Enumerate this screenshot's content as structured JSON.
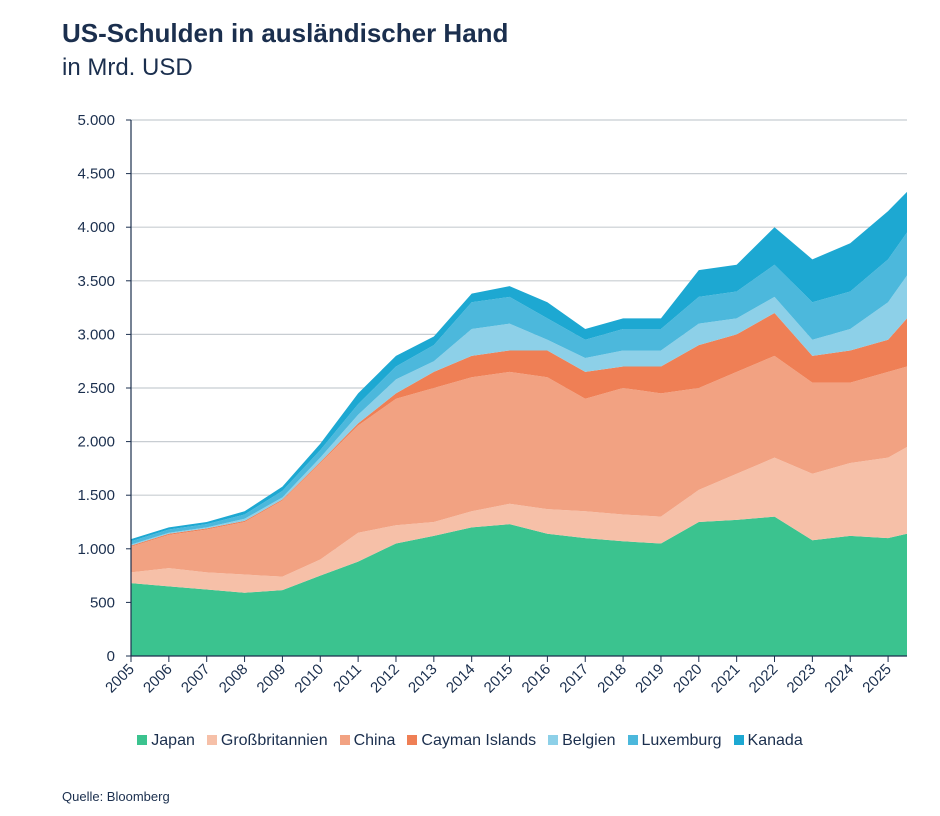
{
  "title": "US-Schulden in ausländischer Hand",
  "subtitle": "in Mrd. USD",
  "source": "Quelle: Bloomberg",
  "chart_data": {
    "type": "area",
    "stacked": true,
    "title": "US-Schulden in ausländischer Hand",
    "ylabel": "in Mrd. USD",
    "ylim": [
      0,
      5000
    ],
    "yticks": [
      0,
      500,
      1000,
      1500,
      2000,
      2500,
      3000,
      3500,
      4000,
      4500,
      5000
    ],
    "ytick_labels": [
      "0",
      "500",
      "1.000",
      "1.500",
      "2.000",
      "2.500",
      "3.000",
      "3.500",
      "4.000",
      "4.500",
      "5.000"
    ],
    "xlim": [
      2005,
      2025.5
    ],
    "xtick_labels": [
      "2005",
      "2006",
      "2007",
      "2008",
      "2009",
      "2010",
      "2011",
      "2012",
      "2013",
      "2014",
      "2015",
      "2016",
      "2017",
      "2018",
      "2019",
      "2020",
      "2021",
      "2022",
      "2023",
      "2024",
      "2025"
    ],
    "grid": "horizontal",
    "legend": "bottom",
    "x": [
      2005,
      2006,
      2007,
      2008,
      2009,
      2010,
      2011,
      2012,
      2013,
      2014,
      2015,
      2016,
      2017,
      2018,
      2019,
      2020,
      2021,
      2022,
      2023,
      2024,
      2025,
      2025.5
    ],
    "series": [
      {
        "name": "Japan",
        "color": "#3bc38f",
        "values": [
          680,
          650,
          620,
          590,
          615,
          750,
          880,
          1050,
          1120,
          1200,
          1230,
          1140,
          1100,
          1070,
          1050,
          1250,
          1270,
          1300,
          1080,
          1120,
          1100,
          1140
        ]
      },
      {
        "name": "Großbritannien",
        "color": "#f6c0a8",
        "values": [
          100,
          170,
          160,
          170,
          125,
          150,
          270,
          170,
          130,
          150,
          190,
          230,
          250,
          250,
          250,
          300,
          430,
          550,
          620,
          680,
          750,
          810
        ]
      },
      {
        "name": "China",
        "color": "#f2a282",
        "values": [
          240,
          310,
          400,
          490,
          710,
          900,
          1000,
          1180,
          1250,
          1250,
          1230,
          1230,
          1050,
          1180,
          1150,
          950,
          950,
          950,
          850,
          750,
          800,
          750
        ]
      },
      {
        "name": "Cayman Islands",
        "color": "#ef7f55",
        "values": [
          10,
          10,
          10,
          10,
          10,
          10,
          20,
          50,
          150,
          200,
          200,
          250,
          250,
          200,
          250,
          400,
          350,
          400,
          250,
          300,
          300,
          450
        ]
      },
      {
        "name": "Belgien",
        "color": "#8dd0e8",
        "values": [
          10,
          10,
          10,
          20,
          20,
          40,
          80,
          130,
          100,
          250,
          250,
          100,
          130,
          150,
          150,
          200,
          150,
          150,
          150,
          200,
          350,
          400
        ]
      },
      {
        "name": "Luxemburg",
        "color": "#4cb8dc",
        "values": [
          30,
          30,
          30,
          40,
          60,
          70,
          100,
          120,
          150,
          250,
          250,
          200,
          170,
          200,
          200,
          250,
          250,
          300,
          350,
          350,
          400,
          400
        ]
      },
      {
        "name": "Kanada",
        "color": "#1da8d2",
        "values": [
          20,
          20,
          20,
          30,
          40,
          60,
          100,
          100,
          80,
          80,
          100,
          150,
          100,
          100,
          100,
          250,
          250,
          350,
          400,
          450,
          450,
          380
        ]
      }
    ]
  }
}
